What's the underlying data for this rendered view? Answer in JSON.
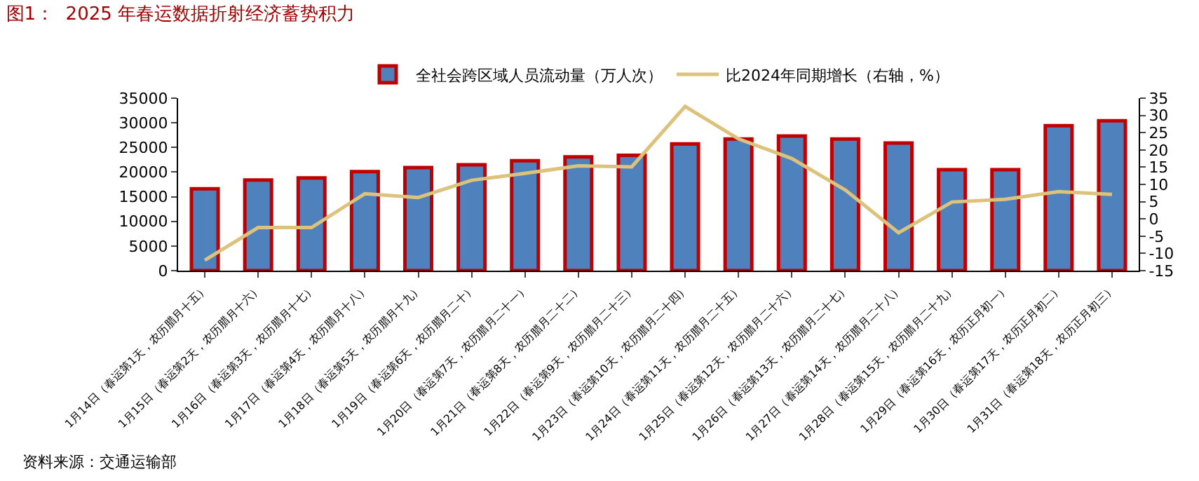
{
  "chart_data": {
    "type": "bar",
    "title": "图1：  2025 年春运数据折射经济蓄势积力",
    "categories": [
      "1月14日（春运第1天，农历腊月十五）",
      "1月15日（春运第2天，农历腊月十六）",
      "1月16日（春运第3天，农历腊月十七）",
      "1月17日（春运第4天，农历腊月十八）",
      "1月18日（春运第5天，农历腊月十九）",
      "1月19日（春运第6天，农历腊月二十）",
      "1月20日（春运第7天，农历腊月二十一）",
      "1月21日（春运第8天，农历腊月二十二）",
      "1月22日（春运第9天，农历腊月二十三）",
      "1月23日（春运第10天，农历腊月二十四）",
      "1月24日（春运第11天，农历腊月二十五）",
      "1月25日（春运第12天，农历腊月二十六）",
      "1月26日（春运第13天，农历腊月二十七）",
      "1月27日（春运第14天，农历腊月二十八）",
      "1月28日（春运第15天，农历腊月二十九）",
      "1月29日（春运第16天，农历正月初一）",
      "1月30日（春运第17天，农历正月初二）",
      "1月31日（春运第18天，农历正月初三）"
    ],
    "series": [
      {
        "name": "全社会跨区域人员流动量（万人次）",
        "color": "#4f81bd",
        "values": [
          16600,
          18400,
          18800,
          20100,
          20900,
          21500,
          22300,
          23100,
          23400,
          25700,
          26700,
          27300,
          26700,
          25900,
          20500,
          20500,
          29400,
          30400
        ]
      },
      {
        "name": "比2024年同期增长（右轴，%）",
        "type": "line",
        "axis": "y2",
        "color": "#dcc27a",
        "values": [
          -12,
          -2.5,
          -2.5,
          7.3,
          6.2,
          11.2,
          13.2,
          15.4,
          15.1,
          32.6,
          23.2,
          17.5,
          8.4,
          -4,
          4.9,
          5.7,
          7.9,
          7.1
        ]
      }
    ],
    "ylim": [
      0,
      35000
    ],
    "yticks": [
      0,
      5000,
      10000,
      15000,
      20000,
      25000,
      30000,
      35000
    ],
    "y2lim": [
      -15,
      35
    ],
    "y2ticks": [
      -15,
      -10,
      -5,
      0,
      5,
      10,
      15,
      20,
      25,
      30,
      35
    ],
    "grid": false,
    "legend": "top",
    "marker": "none",
    "line_style": "solid",
    "annotations": [
      "资料来源：交通运输部"
    ]
  }
}
